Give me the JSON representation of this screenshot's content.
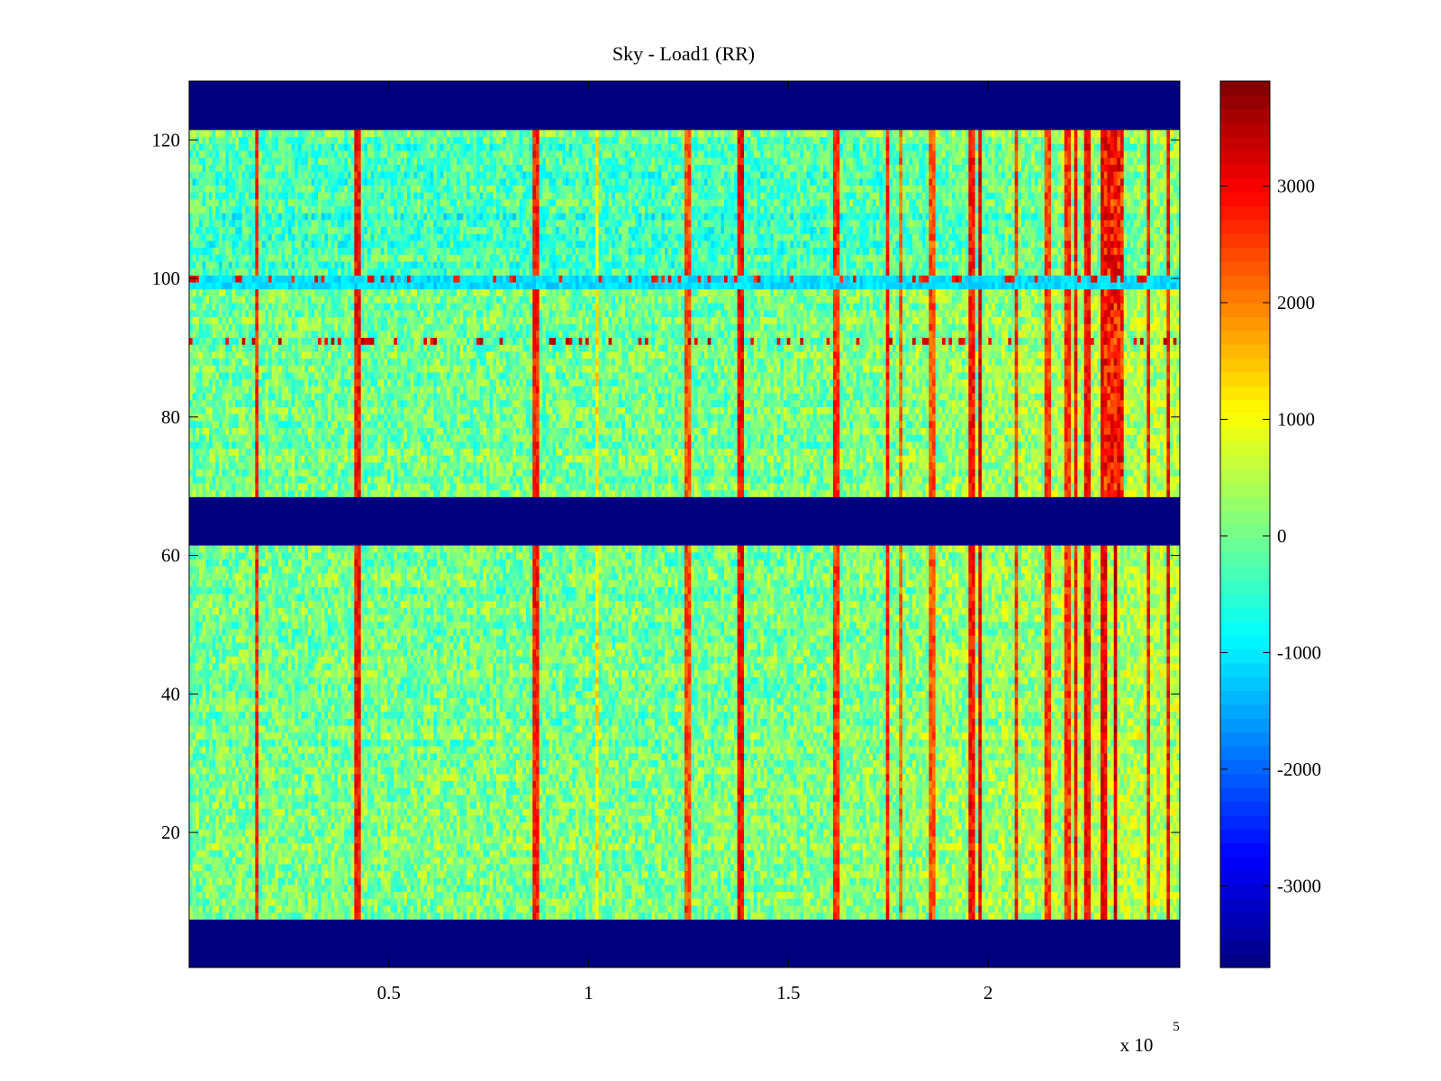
{
  "chart_data": {
    "type": "heatmap",
    "title": "Sky - Load1 (RR)",
    "xlabel": "",
    "ylabel": "",
    "x_range": [
      0,
      248000
    ],
    "y_range": [
      0.5,
      128.5
    ],
    "x_ticks": [
      0.5,
      1,
      1.5,
      2
    ],
    "x_tick_labels": [
      "0.5",
      "1",
      "1.5",
      "2"
    ],
    "x_multiplier_base": "x 10",
    "x_multiplier_exponent": "5",
    "y_ticks": [
      20,
      40,
      60,
      80,
      100,
      120
    ],
    "y_tick_labels": [
      "20",
      "40",
      "60",
      "80",
      "100",
      "120"
    ],
    "colormap": "jet",
    "clim": [
      -3700,
      3900
    ],
    "colorbar_ticks": [
      3000,
      2000,
      1000,
      0,
      -1000,
      -2000,
      -3000
    ],
    "colorbar_tick_labels": [
      "3000",
      "2000",
      "1000",
      "0",
      "-1000",
      "-2000",
      "-3000"
    ],
    "masked_rows": [
      [
        0.5,
        7.5
      ],
      [
        61.5,
        68.5
      ],
      [
        121.5,
        128.5
      ]
    ],
    "masked_value": -3700,
    "background_level": 0,
    "hot_columns": [
      {
        "x": 17000,
        "value": 3100
      },
      {
        "x": 42000,
        "value": 3300
      },
      {
        "x": 87000,
        "value": 3200
      },
      {
        "x": 102000,
        "value": 1600
      },
      {
        "x": 125000,
        "value": 2800
      },
      {
        "x": 138000,
        "value": 3400
      },
      {
        "x": 162000,
        "value": 3000
      },
      {
        "x": 175000,
        "value": 3200
      },
      {
        "x": 178000,
        "value": 2600
      },
      {
        "x": 186000,
        "value": 2800
      },
      {
        "x": 196000,
        "value": 3300
      },
      {
        "x": 198000,
        "value": 3600
      },
      {
        "x": 207000,
        "value": 3000
      },
      {
        "x": 215000,
        "value": 2900
      },
      {
        "x": 220000,
        "value": 3000
      },
      {
        "x": 222000,
        "value": 3300
      },
      {
        "x": 225000,
        "value": 3400
      },
      {
        "x": 229000,
        "value": 3500
      },
      {
        "x": 232000,
        "value": 3800
      },
      {
        "x": 240000,
        "value": 3200
      },
      {
        "x": 245000,
        "value": 3300
      }
    ],
    "hot_band": {
      "x_range": [
        229000,
        234000
      ],
      "y_range": [
        68.5,
        121.5
      ],
      "value": 3500
    },
    "cool_row": {
      "y_range": [
        98.5,
        100.5
      ],
      "value": -1100
    },
    "dashed_rows": [
      {
        "y": 91,
        "value": 3600
      },
      {
        "y": 100,
        "value": 3300
      }
    ]
  }
}
